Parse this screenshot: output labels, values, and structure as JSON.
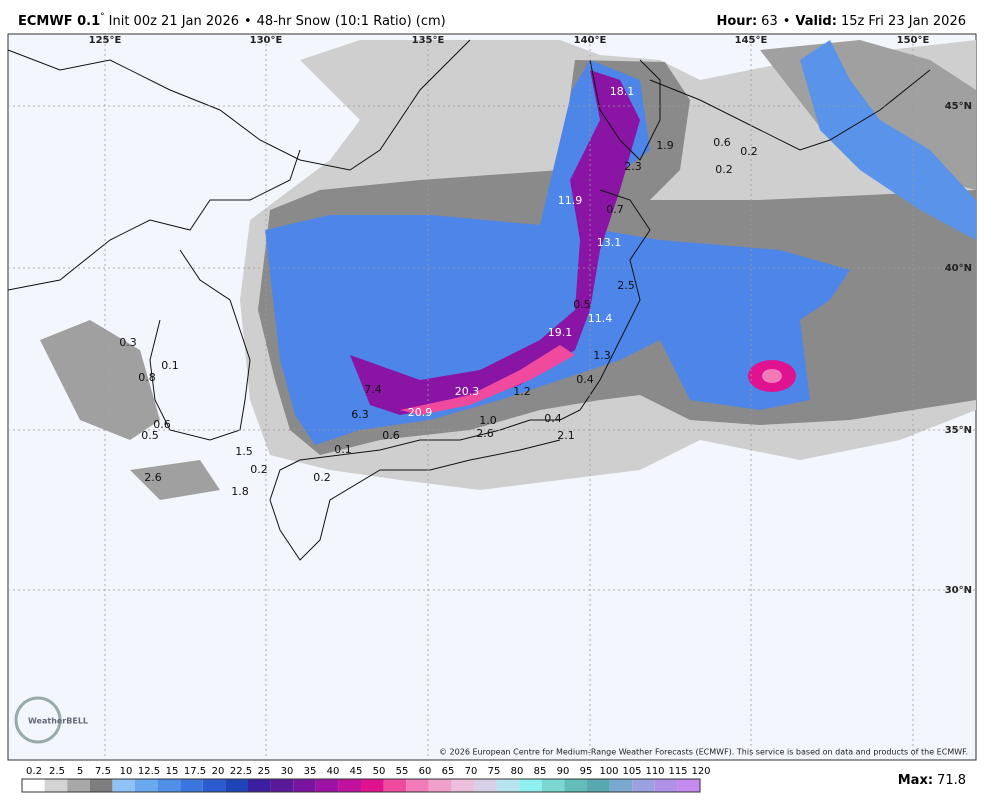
{
  "header": {
    "model": "ECMWF 0.1",
    "degree": "°",
    "init": "Init 00z 21 Jan 2026",
    "sep": "•",
    "product": "48-hr Snow (10:1 Ratio) (cm)",
    "hour_label": "Hour:",
    "hour": "63",
    "valid_label": "Valid:",
    "valid": "15z Fri 23 Jan 2026"
  },
  "lon_labels": [
    "125°E",
    "130°E",
    "135°E",
    "140°E",
    "145°E",
    "150°E"
  ],
  "lat_labels": [
    "45°N",
    "40°N",
    "35°N",
    "30°N"
  ],
  "map_labels": [
    "18.1",
    "1.9",
    "0.6",
    "0.2",
    "0.2",
    "2.3",
    "11.9",
    "0.7",
    "13.1",
    "2.5",
    "0.5",
    "11.4",
    "19.1",
    "1.3",
    "0.4",
    "1.2",
    "20.3",
    "20.9",
    "6.3",
    "7.4",
    "1.0",
    "0.4",
    "2.1",
    "2.6",
    "0.6",
    "0.1",
    "1.5",
    "0.2",
    "0.2",
    "1.8",
    "2.6",
    "0.3",
    "0.1",
    "0.8",
    "0.6",
    "0.5"
  ],
  "copyright": "© 2026 European Centre for Medium-Range Weather Forecasts (ECMWF). This service is based on data and products of the ECMWF.",
  "logo": "WeatherBELL",
  "colorbar": {
    "labels": [
      "0.2",
      "2.5",
      "5",
      "7.5",
      "10",
      "12.5",
      "15",
      "17.5",
      "20",
      "22.5",
      "25",
      "30",
      "35",
      "40",
      "45",
      "50",
      "55",
      "60",
      "65",
      "70",
      "75",
      "80",
      "85",
      "90",
      "95",
      "100",
      "105",
      "110",
      "115",
      "120"
    ],
    "colors": [
      "#ffffff",
      "#d4d4d4",
      "#a8a8a8",
      "#7e7e7e",
      "#8fc3f5",
      "#6aa9f0",
      "#4f8fe8",
      "#3a76de",
      "#2a5cd0",
      "#1e44b8",
      "#3b1fa0",
      "#5a189a",
      "#7a14a0",
      "#9c12a4",
      "#c0109e",
      "#e0128f",
      "#f04a9e",
      "#f27ab8",
      "#f1a0cc",
      "#ecc0dc",
      "#d8d0e8",
      "#b8e4f0",
      "#90f0f0",
      "#7ad8d0",
      "#62bcb8",
      "#58a8b0",
      "#7aa8d0",
      "#9aa0e0",
      "#b090e8",
      "#c48af0"
    ]
  },
  "max_label": "Max:",
  "max": "71.8"
}
